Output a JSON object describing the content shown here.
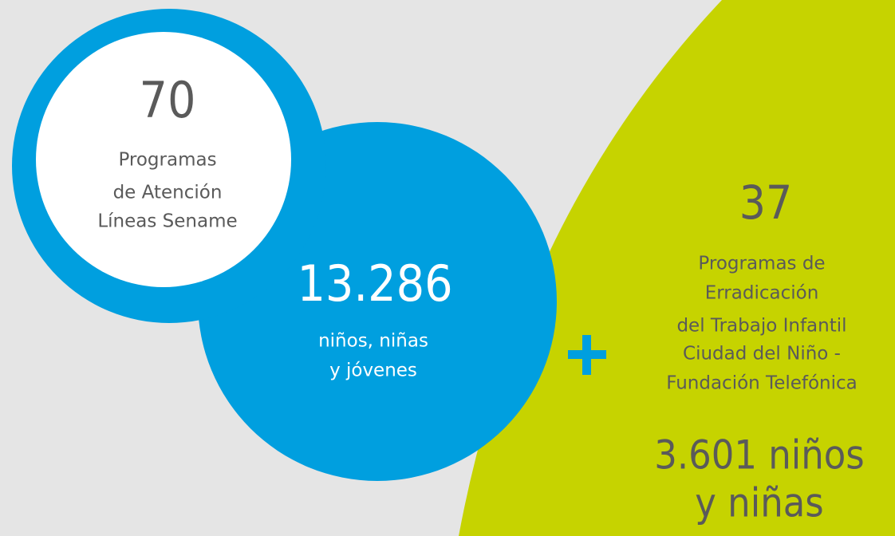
{
  "left_circle": {
    "number": "70",
    "lines": [
      "Programas",
      "de  Atención",
      "Líneas Sename"
    ]
  },
  "center_circle": {
    "number": "13.286",
    "lines": [
      "niños, niñas",
      "y jóvenes"
    ]
  },
  "right_panel": {
    "number": "37",
    "lines": [
      "Programas de",
      "Erradicación",
      "del Trabajo Infantil",
      "Ciudad del Niño -",
      "Fundación Telefónica"
    ],
    "highlight": [
      "3.601 niños",
      "y niñas"
    ]
  }
}
